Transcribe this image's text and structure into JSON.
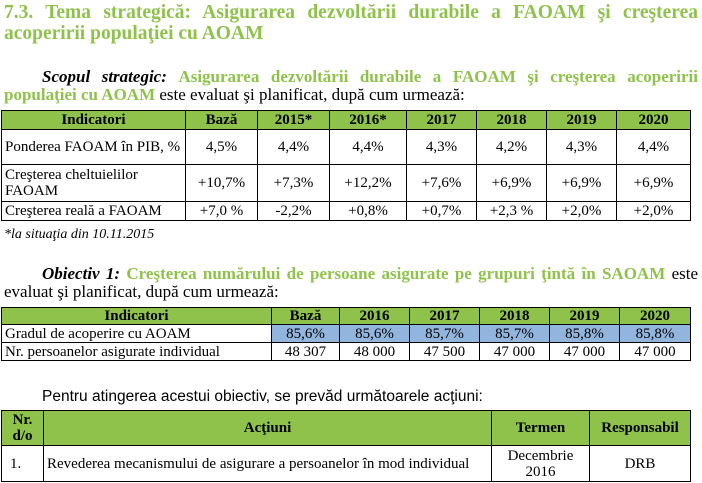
{
  "heading": {
    "number": "7.3.",
    "text": "Tema strategică: Asigurarea dezvoltării durabile a FAOAM şi creşterea acoperirii populaţiei cu AOAM"
  },
  "scope": {
    "lead": "Scopul strategic",
    "colon": ":",
    "green": "Asigurarea dezvoltării durabile a FAOAM şi creşterea acoperirii populaţiei cu AOAM",
    "rest": " este evaluat şi planificat, după cum urmează:"
  },
  "table1": {
    "headers": [
      "Indicatori",
      "Bază",
      "2015*",
      "2016*",
      "2017",
      "2018",
      "2019",
      "2020"
    ],
    "rows": [
      {
        "label": "Ponderea FAOAM în PIB, %",
        "values": [
          "4,5%",
          "4,4%",
          "4,4%",
          "4,3%",
          "4,2%",
          "4,3%",
          "4,4%"
        ]
      },
      {
        "label": "Creşterea cheltuielilor FAOAM",
        "values": [
          "+10,7%",
          "+7,3%",
          "+12,2%",
          "+7,6%",
          "+6,9%",
          "+6,9%",
          "+6,9%"
        ]
      },
      {
        "label": "Creşterea reală a FAOAM",
        "values": [
          "+7,0 %",
          "-2,2%",
          "+0,8%",
          "+0,7%",
          "+2,3 %",
          "+2,0%",
          "+2,0%"
        ]
      }
    ],
    "note": "*la situaţia din 10.11.2015"
  },
  "objective": {
    "lead": "Obiectiv 1:",
    "green": "Creşterea numărului de persoane asigurate pe grupuri ţintă în SAOAM",
    "rest": " este evaluat şi planificat, după cum urmează:"
  },
  "table2": {
    "headers": [
      "Indicatori",
      "Bază",
      "2016",
      "2017",
      "2018",
      "2019",
      "2020"
    ],
    "rows": [
      {
        "label": "Gradul de acoperire cu AOAM",
        "values": [
          "85,6%",
          "85,6%",
          "85,7%",
          "85,7%",
          "85,8%",
          "85,8%"
        ]
      },
      {
        "label": "Nr. persoanelor asigurate individual",
        "values": [
          "48 307",
          "48 000",
          "47 500",
          "47 000",
          "47 000",
          "47 000"
        ]
      }
    ]
  },
  "actions_intro": "Pentru atingerea acestui obiectiv, se prevăd următoarele acţiuni:",
  "table3": {
    "headers": [
      "Nr. d/o",
      "Acţiuni",
      "Termen",
      "Responsabil"
    ],
    "rows": [
      {
        "nr": "1.",
        "action": "Revederea mecanismului de asigurare a persoanelor în mod individual",
        "term": "Decembrie 2016",
        "resp": "DRB"
      }
    ]
  },
  "colors": {
    "accent_green": "#8fc24a",
    "highlight_blue": "#92b5dd"
  }
}
